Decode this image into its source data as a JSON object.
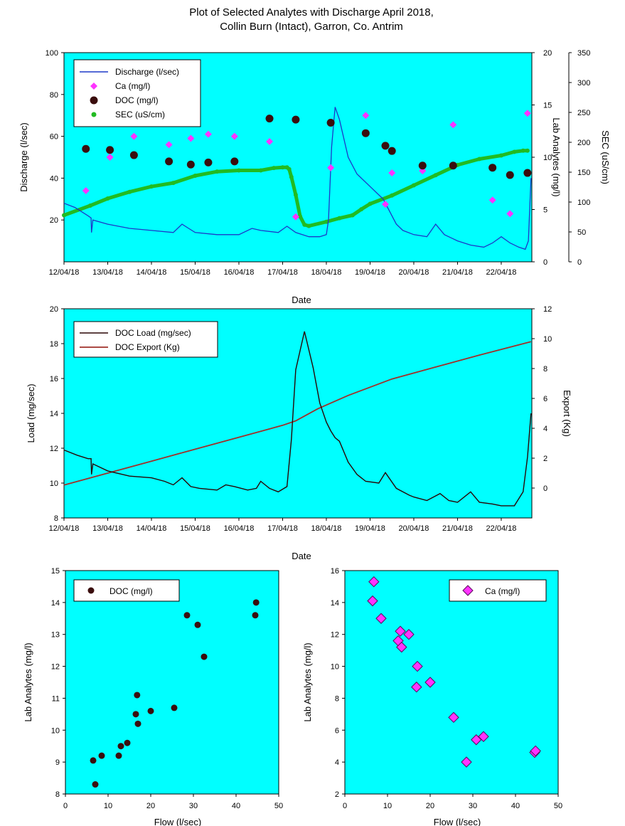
{
  "title_line1": "Plot of Selected Analytes with Discharge April 2018,",
  "title_line2": "Collin Burn (Intact), Garron, Co. Antrim",
  "colors": {
    "plot_bg": "#00ffff",
    "discharge": "#1d38c8",
    "ca": "#ff33ff",
    "doc": "#3a0d0d",
    "sec": "#22bb22",
    "doc_load": "#2a0505",
    "doc_export": "#a0302a"
  },
  "chart_data": [
    {
      "type": "line",
      "id": "top",
      "xlabel": "Date",
      "ylabel": "Discharge (l/sec)",
      "y2label": "Lab Analytes (mg/l)",
      "y3label": "SEC (uS/cm)",
      "ylim": [
        0,
        100
      ],
      "y2lim": [
        0,
        20
      ],
      "y3lim": [
        0,
        350
      ],
      "yticks": [
        20,
        40,
        60,
        80,
        100
      ],
      "y2ticks": [
        0,
        5,
        10,
        15,
        20
      ],
      "y3ticks": [
        0,
        50,
        100,
        150,
        200,
        250,
        300,
        350
      ],
      "xlim": [
        0,
        10.7
      ],
      "xticks": [
        "12/04/18",
        "13/04/18",
        "14/04/18",
        "15/04/18",
        "16/04/18",
        "17/04/18",
        "18/04/18",
        "19/04/18",
        "20/04/18",
        "21/04/18",
        "22/04/18"
      ],
      "grid": false,
      "legend_position": "top-left",
      "legend": [
        "Discharge (l/sec)",
        "Ca (mg/l)",
        "DOC (mg/l)",
        "SEC (uS/cm)"
      ],
      "series": [
        {
          "name": "Discharge (l/sec)",
          "axis": "left",
          "style": "line",
          "x": [
            0,
            0.25,
            0.55,
            0.62,
            0.63,
            0.66,
            1.0,
            1.5,
            2.0,
            2.5,
            2.7,
            2.85,
            3.0,
            3.5,
            4.0,
            4.3,
            4.5,
            4.9,
            5.1,
            5.3,
            5.6,
            5.85,
            6.0,
            6.05,
            6.12,
            6.2,
            6.3,
            6.5,
            6.7,
            7.0,
            7.3,
            7.6,
            7.75,
            8.0,
            8.3,
            8.5,
            8.7,
            9.0,
            9.3,
            9.6,
            9.8,
            10.0,
            10.2,
            10.4,
            10.55,
            10.62,
            10.68
          ],
          "values": [
            28,
            26,
            22,
            21,
            14,
            20,
            18,
            16,
            15,
            14,
            18,
            16,
            14,
            13,
            13,
            16,
            15,
            14,
            17,
            14,
            12,
            12,
            13,
            20,
            55,
            74,
            68,
            50,
            42,
            36,
            30,
            18,
            15,
            13,
            12,
            18,
            13,
            10,
            8,
            7,
            9,
            12,
            9,
            7,
            6,
            10,
            40
          ]
        },
        {
          "name": "Ca (mg/l)",
          "axis": "right",
          "style": "marker-diamond",
          "x": [
            0.5,
            1.05,
            1.6,
            2.4,
            2.9,
            3.3,
            3.9,
            4.7,
            5.3,
            6.1,
            6.9,
            7.35,
            7.5,
            8.2,
            8.9,
            9.8,
            10.2,
            10.6
          ],
          "values": [
            6.8,
            10.0,
            12.0,
            11.2,
            11.8,
            12.2,
            12.0,
            11.5,
            4.3,
            9.0,
            14.0,
            5.5,
            8.5,
            8.7,
            13.1,
            5.9,
            4.6,
            14.2
          ]
        },
        {
          "name": "DOC (mg/l)",
          "axis": "right",
          "style": "marker-circle",
          "x": [
            0.5,
            1.05,
            1.6,
            2.4,
            2.9,
            3.3,
            3.9,
            4.7,
            5.3,
            6.1,
            6.9,
            7.35,
            7.5,
            8.2,
            8.9,
            9.8,
            10.2,
            10.6
          ],
          "values": [
            10.8,
            10.7,
            10.2,
            9.6,
            9.3,
            9.5,
            9.6,
            13.7,
            13.6,
            13.3,
            12.3,
            11.1,
            10.6,
            9.2,
            9.2,
            9.0,
            8.3,
            8.5
          ]
        },
        {
          "name": "SEC (uS/cm)",
          "axis": "right2",
          "style": "line-markers",
          "x": [
            0,
            0.6,
            1.0,
            1.5,
            2.0,
            2.5,
            3.0,
            3.5,
            4.0,
            4.5,
            4.8,
            5.0,
            5.1,
            5.15,
            5.2,
            5.3,
            5.4,
            5.5,
            5.6,
            6.0,
            6.3,
            6.6,
            6.8,
            7.0,
            7.5,
            8.0,
            8.5,
            9.0,
            9.5,
            10.0,
            10.3,
            10.5,
            10.6
          ],
          "values": [
            78,
            94,
            106,
            117,
            126,
            132,
            144,
            151,
            153,
            153,
            157,
            158,
            158,
            155,
            142,
            112,
            76,
            62,
            60,
            67,
            73,
            78,
            88,
            97,
            111,
            128,
            145,
            162,
            172,
            178,
            184,
            186,
            186
          ]
        }
      ]
    },
    {
      "type": "line",
      "id": "middle",
      "xlabel": "Date",
      "ylabel": "Load (mg/sec)",
      "y2label": "Export (Kg)",
      "ylim": [
        8,
        20
      ],
      "y2lim": [
        -2,
        12
      ],
      "yticks": [
        8,
        10,
        12,
        14,
        16,
        18,
        20
      ],
      "y2ticks": [
        0,
        2,
        4,
        6,
        8,
        10,
        12
      ],
      "xlim": [
        0,
        10.7
      ],
      "xticks": [
        "12/04/18",
        "13/04/18",
        "14/04/18",
        "15/04/18",
        "16/04/18",
        "17/04/18",
        "18/04/18",
        "19/04/18",
        "20/04/18",
        "21/04/18",
        "22/04/18"
      ],
      "grid": false,
      "legend_position": "top-left",
      "legend": [
        "DOC Load (mg/sec)",
        "DOC Export (Kg)"
      ],
      "series": [
        {
          "name": "DOC Load (mg/sec)",
          "axis": "left",
          "x": [
            0,
            0.3,
            0.55,
            0.62,
            0.63,
            0.66,
            1.0,
            1.5,
            2.0,
            2.3,
            2.5,
            2.7,
            2.9,
            3.1,
            3.5,
            3.7,
            3.9,
            4.2,
            4.4,
            4.5,
            4.7,
            4.9,
            5.1,
            5.2,
            5.3,
            5.5,
            5.7,
            5.85,
            6.0,
            6.1,
            6.2,
            6.3,
            6.5,
            6.7,
            6.9,
            7.2,
            7.35,
            7.6,
            7.9,
            8.0,
            8.3,
            8.6,
            8.8,
            9.0,
            9.3,
            9.5,
            9.8,
            10.0,
            10.3,
            10.5,
            10.6,
            10.68
          ],
          "values": [
            11.9,
            11.6,
            11.4,
            11.4,
            10.5,
            11.1,
            10.7,
            10.4,
            10.3,
            10.1,
            9.9,
            10.3,
            9.8,
            9.7,
            9.6,
            9.9,
            9.8,
            9.6,
            9.7,
            10.1,
            9.7,
            9.5,
            9.8,
            12.5,
            16.5,
            18.7,
            16.6,
            14.6,
            13.5,
            13.0,
            12.6,
            12.4,
            11.2,
            10.5,
            10.1,
            10.0,
            10.6,
            9.7,
            9.3,
            9.2,
            9.0,
            9.4,
            9.0,
            8.9,
            9.5,
            8.9,
            8.8,
            8.7,
            8.7,
            9.5,
            11.5,
            14.0
          ]
        },
        {
          "name": "DOC Export (Kg)",
          "axis": "right",
          "x": [
            0,
            1,
            2,
            3,
            4,
            5,
            5.3,
            5.8,
            6.5,
            7.5,
            8.5,
            9.5,
            10.68
          ],
          "values": [
            0.2,
            1.0,
            1.8,
            2.6,
            3.4,
            4.2,
            4.5,
            5.3,
            6.2,
            7.3,
            8.1,
            8.9,
            9.8
          ]
        }
      ]
    },
    {
      "type": "scatter",
      "id": "doc-scatter",
      "xlabel": "Flow (l/sec)",
      "ylabel": "Lab Analytes (mg/l)",
      "xlim": [
        0,
        50
      ],
      "ylim": [
        8,
        15
      ],
      "xticks": [
        0,
        10,
        20,
        30,
        40,
        50
      ],
      "yticks": [
        8,
        9,
        10,
        11,
        12,
        13,
        14,
        15
      ],
      "grid": false,
      "legend_position": "top-left",
      "legend": [
        "DOC (mg/l)"
      ],
      "series": [
        {
          "name": "DOC (mg/l)",
          "x": [
            6.5,
            7.0,
            8.5,
            12.5,
            13.0,
            14.5,
            16.5,
            16.8,
            17.0,
            20.0,
            25.5,
            28.5,
            31.0,
            32.5,
            44.5,
            44.7
          ],
          "values": [
            9.05,
            8.3,
            9.2,
            9.2,
            9.5,
            9.6,
            10.5,
            11.1,
            10.2,
            10.6,
            10.7,
            13.6,
            13.3,
            12.3,
            13.6,
            14.0
          ]
        }
      ]
    },
    {
      "type": "scatter",
      "id": "ca-scatter",
      "xlabel": "Flow (l/sec)",
      "ylabel": "Lab Analytes (mg/l)",
      "xlim": [
        0,
        50
      ],
      "ylim": [
        2,
        16
      ],
      "xticks": [
        0,
        10,
        20,
        30,
        40,
        50
      ],
      "yticks": [
        2,
        4,
        6,
        8,
        10,
        12,
        14,
        16
      ],
      "grid": false,
      "legend_position": "top-right",
      "legend": [
        "Ca (mg/l)"
      ],
      "series": [
        {
          "name": "Ca (mg/l)",
          "x": [
            6.8,
            6.5,
            8.5,
            12.5,
            13.0,
            13.3,
            15.0,
            16.8,
            17.0,
            20.0,
            25.5,
            28.5,
            30.8,
            32.5,
            44.5,
            44.7
          ],
          "values": [
            15.3,
            14.1,
            13.0,
            11.6,
            12.2,
            11.2,
            12.0,
            8.7,
            10.0,
            9.0,
            6.8,
            4.0,
            5.4,
            5.6,
            4.6,
            4.7
          ]
        }
      ]
    }
  ]
}
